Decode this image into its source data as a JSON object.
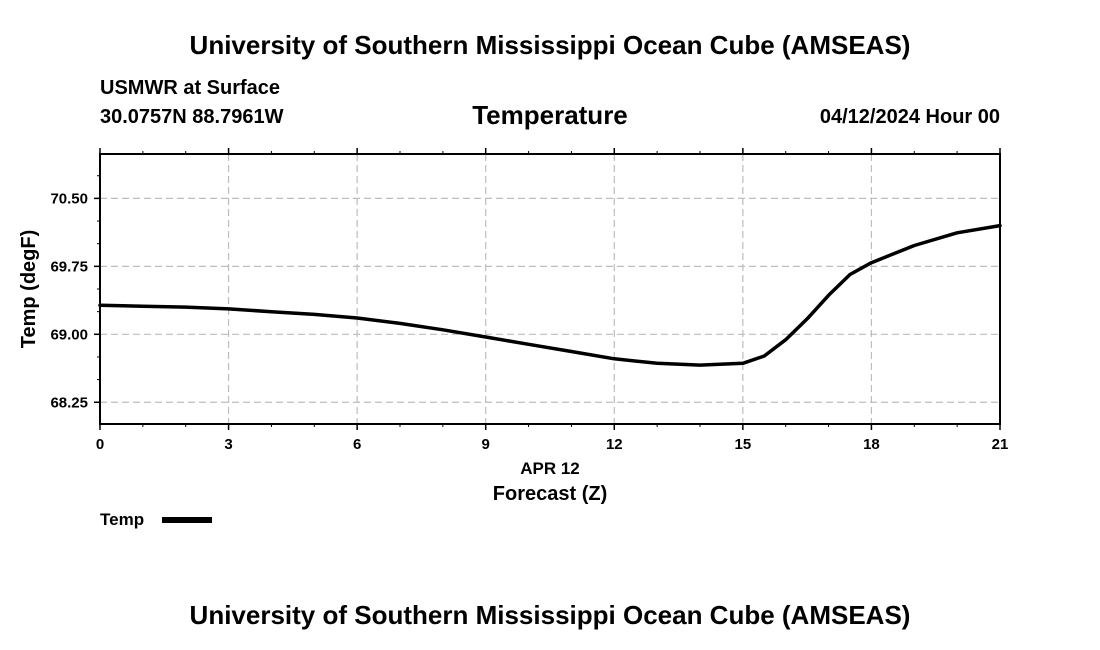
{
  "header": {
    "title": "University of Southern Mississippi Ocean Cube (AMSEAS)",
    "station": "USMWR at Surface",
    "coords": "30.0757N  88.7961W",
    "variable": "Temperature",
    "datetime": "04/12/2024 Hour 00"
  },
  "footer": {
    "title": "University of Southern Mississippi Ocean Cube (AMSEAS)"
  },
  "chart_data": {
    "type": "line",
    "xlabel": "Forecast (Z)",
    "xsublabel": "APR 12",
    "ylabel": "Temp (degF)",
    "xlim": [
      0,
      21
    ],
    "ylim": [
      68.01,
      70.99
    ],
    "xticks": [
      0,
      3,
      6,
      9,
      12,
      15,
      18,
      21
    ],
    "xtick_labels": [
      "0",
      "3",
      "6",
      "9",
      "12",
      "15",
      "18",
      "21"
    ],
    "yticks": [
      68.25,
      69.0,
      69.75,
      70.5
    ],
    "ytick_labels": [
      "68.25",
      "69.00",
      "69.75",
      "70.50"
    ],
    "grid": true,
    "legend_position": "bottom-left",
    "series": [
      {
        "name": "Temp",
        "color": "#000000",
        "x": [
          0,
          1,
          2,
          3,
          4,
          5,
          6,
          7,
          8,
          9,
          10,
          11,
          12,
          13,
          14,
          15,
          15.5,
          16,
          16.5,
          17,
          17.5,
          18,
          19,
          20,
          21
        ],
        "y": [
          69.32,
          69.31,
          69.3,
          69.28,
          69.25,
          69.22,
          69.18,
          69.12,
          69.05,
          68.97,
          68.89,
          68.81,
          68.73,
          68.68,
          68.66,
          68.68,
          68.76,
          68.94,
          69.17,
          69.43,
          69.66,
          69.79,
          69.98,
          70.12,
          70.2
        ]
      }
    ]
  }
}
